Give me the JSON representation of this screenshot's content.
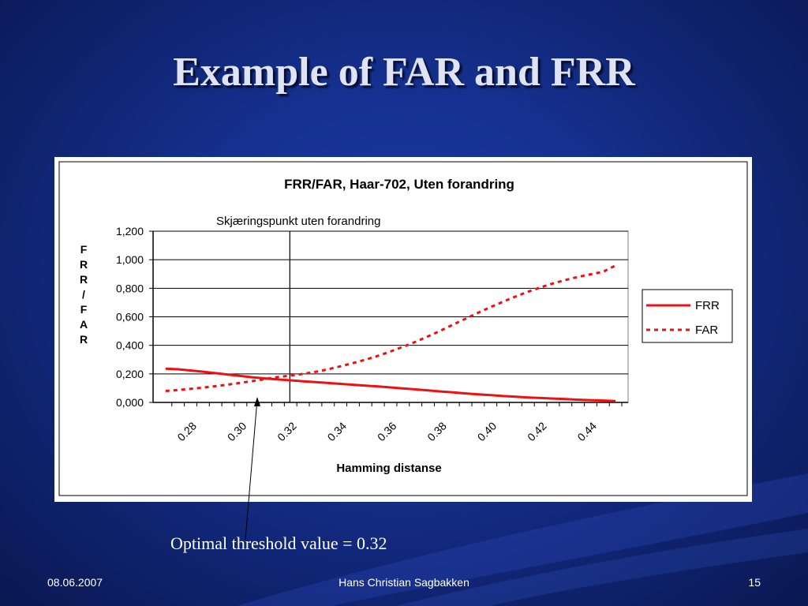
{
  "slide": {
    "title": "Example of FAR and FRR",
    "caption": "Optimal threshold value = 0.32",
    "footer_date": "08.06.2007",
    "footer_author": "Hans Christian Sagbakken",
    "footer_page": "15"
  },
  "colors": {
    "series": "#ee1111",
    "marker_line": "#000000",
    "background": "#15308e"
  },
  "chart_data": {
    "type": "line",
    "title": "FRR/FAR, Haar-702, Uten forandring",
    "annotation": "Skjæringspunkt uten forandring",
    "xlabel": "Hamming distanse",
    "ylabel": "FRR/FAR",
    "ylim": [
      0,
      1.2
    ],
    "yticks": [
      0,
      0.2,
      0.4,
      0.6,
      0.8,
      1.0,
      1.2
    ],
    "ytick_labels": [
      "0,000",
      "0,200",
      "0,400",
      "0,600",
      "0,800",
      "1,000",
      "1,200"
    ],
    "xlim": [
      0.27,
      0.46
    ],
    "xticks": [
      0.28,
      0.3,
      0.32,
      0.34,
      0.36,
      0.38,
      0.4,
      0.42,
      0.44
    ],
    "xtick_labels": [
      "0.28",
      "0.30",
      "0.32",
      "0.34",
      "0.36",
      "0.38",
      "0.40",
      "0.42",
      "0.44"
    ],
    "marker_x": 0.3247,
    "grid": true,
    "legend_position": "right",
    "x": [
      0.275,
      0.28,
      0.285,
      0.29,
      0.295,
      0.3,
      0.305,
      0.31,
      0.315,
      0.32,
      0.325,
      0.33,
      0.335,
      0.34,
      0.345,
      0.35,
      0.355,
      0.36,
      0.365,
      0.37,
      0.375,
      0.38,
      0.385,
      0.39,
      0.395,
      0.4,
      0.405,
      0.41,
      0.415,
      0.42,
      0.425,
      0.43,
      0.435,
      0.44,
      0.445,
      0.45,
      0.455
    ],
    "series": [
      {
        "name": "FRR",
        "style": "solid",
        "values": [
          0.236,
          0.232,
          0.224,
          0.215,
          0.205,
          0.195,
          0.185,
          0.176,
          0.168,
          0.161,
          0.155,
          0.148,
          0.142,
          0.136,
          0.13,
          0.124,
          0.118,
          0.112,
          0.105,
          0.098,
          0.091,
          0.084,
          0.077,
          0.07,
          0.063,
          0.057,
          0.051,
          0.045,
          0.04,
          0.035,
          0.031,
          0.027,
          0.023,
          0.019,
          0.016,
          0.013,
          0.01
        ]
      },
      {
        "name": "FAR",
        "style": "dashed",
        "values": [
          0.08,
          0.087,
          0.095,
          0.104,
          0.114,
          0.125,
          0.137,
          0.15,
          0.164,
          0.178,
          0.188,
          0.2,
          0.214,
          0.232,
          0.253,
          0.276,
          0.3,
          0.327,
          0.357,
          0.39,
          0.425,
          0.463,
          0.503,
          0.545,
          0.587,
          0.628,
          0.668,
          0.706,
          0.742,
          0.776,
          0.806,
          0.834,
          0.858,
          0.88,
          0.898,
          0.915,
          0.96
        ]
      }
    ]
  }
}
